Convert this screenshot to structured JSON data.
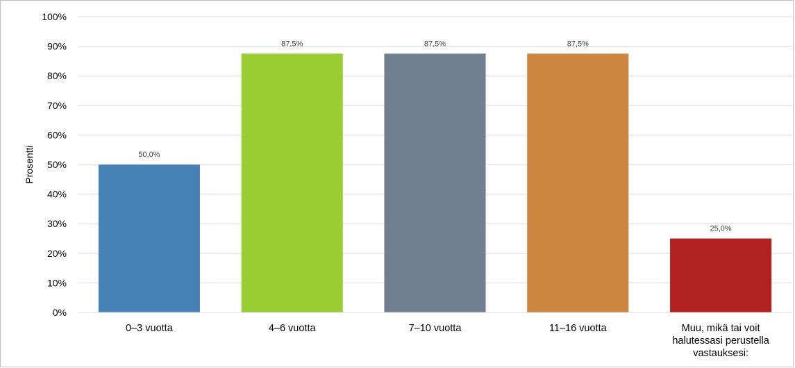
{
  "chart_data": {
    "type": "bar",
    "title": "",
    "xlabel": "",
    "ylabel": "Prosentti",
    "ylim": [
      0,
      100
    ],
    "y_ticks": [
      0,
      10,
      20,
      30,
      40,
      50,
      60,
      70,
      80,
      90,
      100
    ],
    "y_tick_labels": [
      "0%",
      "10%",
      "20%",
      "30%",
      "40%",
      "50%",
      "60%",
      "70%",
      "80%",
      "90%",
      "100%"
    ],
    "grid": true,
    "legend": "none",
    "categories": [
      [
        "0–3 vuotta"
      ],
      [
        "4–6 vuotta"
      ],
      [
        "7–10 vuotta"
      ],
      [
        "11–16 vuotta"
      ],
      [
        "Muu, mikä tai voit",
        "halutessasi perustella",
        "vastauksesi:"
      ]
    ],
    "values": [
      50.0,
      87.5,
      87.5,
      87.5,
      25.0
    ],
    "data_labels": [
      "50,0%",
      "87,5%",
      "87,5%",
      "87,5%",
      "25,0%"
    ],
    "colors": [
      "#4682B4",
      "#9ACD32",
      "#708090",
      "#CD853F",
      "#B22222"
    ]
  }
}
